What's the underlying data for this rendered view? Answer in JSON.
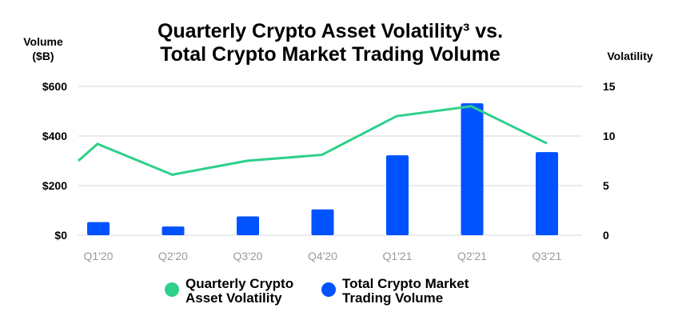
{
  "chart_data": {
    "type": "bar",
    "title_lines": [
      "Quarterly Crypto Asset Volatility³  vs.",
      "Total Crypto Market Trading Volume"
    ],
    "ylabel_left_lines": [
      "Volume",
      "($B)"
    ],
    "ylabel_right": "Volatility",
    "categories": [
      "Q1'20",
      "Q2'20",
      "Q3'20",
      "Q4'20",
      "Q1'21",
      "Q2'21",
      "Q3'21"
    ],
    "y_left": {
      "range": [
        0,
        600
      ],
      "ticks": [
        0,
        200,
        400,
        600
      ],
      "tick_labels": [
        "$0",
        "$200",
        "$400",
        "$600"
      ]
    },
    "y_right": {
      "range": [
        0,
        15
      ],
      "ticks": [
        0,
        5,
        10,
        15
      ],
      "tick_labels": [
        "0",
        "5",
        "10",
        "15"
      ]
    },
    "grid": true,
    "legend_placement": "bottom",
    "series": [
      {
        "name_lines": [
          "Quarterly Crypto",
          "Asset Volatility"
        ],
        "type": "line",
        "axis": "right",
        "color": "#2ed08a",
        "values": [
          9.2,
          6.1,
          7.5,
          8.1,
          12.0,
          13.0,
          9.3
        ],
        "line_start_value": 7.5
      },
      {
        "name_lines": [
          "Total Crypto Market",
          "Trading Volume"
        ],
        "type": "bar",
        "axis": "left",
        "color": "#0052ff",
        "values": [
          53,
          35,
          76,
          104,
          322,
          532,
          335
        ]
      }
    ]
  }
}
